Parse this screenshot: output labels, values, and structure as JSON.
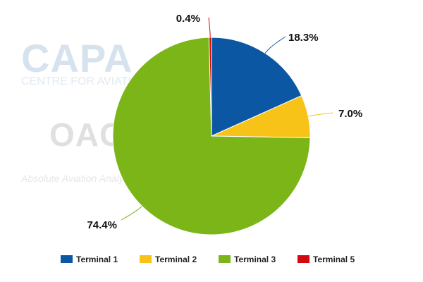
{
  "watermark": {
    "capa_logo": "CAPA",
    "capa_tagline": "CENTRE FOR AVIATION",
    "oag_logo": "OAG",
    "oag_tagline": "Absolute Aviation Analytics"
  },
  "chart_data": {
    "type": "pie",
    "categories": [
      "Terminal 1",
      "Terminal 2",
      "Terminal 3",
      "Terminal 5"
    ],
    "values": [
      18.3,
      7.0,
      74.4,
      0.4
    ],
    "labels": [
      "18.3%",
      "7.0%",
      "74.4%",
      "0.4%"
    ],
    "colors": [
      "#0b57a4",
      "#f7c318",
      "#7cb518",
      "#d10a11"
    ],
    "legend_placement": "bottom",
    "start_angle": "12 o'clock",
    "direction": "clockwise"
  }
}
